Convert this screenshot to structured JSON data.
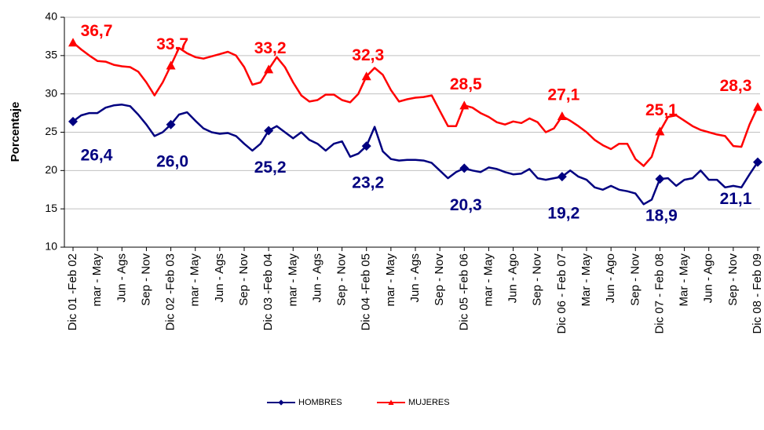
{
  "chart_data": {
    "type": "line",
    "y_label": "Porcentaje",
    "categories": [
      "Dic 01 -Feb 02",
      null,
      null,
      "mar - May",
      null,
      null,
      "Jun - Ags",
      null,
      null,
      "Sep - Nov",
      null,
      null,
      "Dic 02 -Feb 03",
      null,
      null,
      "mar - May",
      null,
      null,
      "Jun - Ags",
      null,
      null,
      "Sep - Nov",
      null,
      null,
      "Dic 03 -Feb 04",
      null,
      null,
      "mar - May",
      null,
      null,
      "Jun - Ags",
      null,
      null,
      "Sep - Nov",
      null,
      null,
      "Dic 04 -Feb 05",
      null,
      null,
      "mar - May",
      null,
      null,
      "Jun - Ags",
      null,
      null,
      "Sep - Nov",
      null,
      null,
      "Dic 05 -Feb 06",
      null,
      null,
      "mar - May",
      null,
      null,
      "Jun - Ago",
      null,
      null,
      "Sep - Nov",
      null,
      null,
      "Dic 06 - Feb 07",
      null,
      null,
      "Mar - May",
      null,
      null,
      "Jun - Ago",
      null,
      null,
      "Sep - Nov",
      null,
      null,
      "Dic 07 - Feb 08",
      null,
      null,
      "Mar - May",
      null,
      null,
      "Jun - Ago",
      null,
      null,
      "Sep - Nov",
      null,
      null,
      "Dic 08 - Feb 09"
    ],
    "series": [
      {
        "name": "HOMBRES",
        "color": "#000080",
        "marker": "diamond",
        "values": [
          26.4,
          27.2,
          27.5,
          27.5,
          28.2,
          28.5,
          28.6,
          28.4,
          27.3,
          26,
          24.5,
          25,
          26.0,
          27.3,
          27.6,
          26.5,
          25.5,
          25,
          24.8,
          24.9,
          24.5,
          23.5,
          22.6,
          23.5,
          25.2,
          25.8,
          25,
          24.2,
          25,
          24,
          23.5,
          22.6,
          23.5,
          23.8,
          21.8,
          22.2,
          23.2,
          25.7,
          22.5,
          21.5,
          21.3,
          21.4,
          21.4,
          21.3,
          21,
          20,
          19,
          19.8,
          20.3,
          20,
          19.8,
          20.4,
          20.2,
          19.8,
          19.5,
          19.6,
          20.2,
          19,
          18.8,
          19,
          19.2,
          20,
          19.2,
          18.8,
          17.8,
          17.5,
          18,
          17.5,
          17.3,
          17,
          15.6,
          16.2,
          18.9,
          19,
          18,
          18.8,
          19,
          20,
          18.8,
          18.8,
          17.8,
          18,
          17.8,
          19.5,
          21.1
        ],
        "value_labels": [
          "26,4",
          null,
          null,
          null,
          null,
          null,
          null,
          null,
          null,
          null,
          null,
          null,
          "26,0",
          null,
          null,
          null,
          null,
          null,
          null,
          null,
          null,
          null,
          null,
          null,
          "25,2",
          null,
          null,
          null,
          null,
          null,
          null,
          null,
          null,
          null,
          null,
          null,
          "23,2",
          null,
          null,
          null,
          null,
          null,
          null,
          null,
          null,
          null,
          null,
          null,
          "20,3",
          null,
          null,
          null,
          null,
          null,
          null,
          null,
          null,
          null,
          null,
          null,
          "19,2",
          null,
          null,
          null,
          null,
          null,
          null,
          null,
          null,
          null,
          null,
          null,
          "18,9",
          null,
          null,
          null,
          null,
          null,
          null,
          null,
          null,
          null,
          null,
          null,
          "21,1"
        ]
      },
      {
        "name": "MUJERES",
        "color": "#ff0000",
        "marker": "triangle",
        "values": [
          36.7,
          35.8,
          35,
          34.3,
          34.2,
          33.8,
          33.6,
          33.5,
          32.9,
          31.5,
          29.8,
          31.5,
          33.7,
          36,
          35.3,
          34.8,
          34.6,
          34.9,
          35.2,
          35.5,
          35,
          33.5,
          31.2,
          31.5,
          33.2,
          34.8,
          33.5,
          31.5,
          29.8,
          29,
          29.2,
          29.9,
          29.9,
          29.2,
          28.9,
          30,
          32.3,
          33.4,
          32.5,
          30.5,
          29,
          29.3,
          29.5,
          29.6,
          29.8,
          27.8,
          25.8,
          25.8,
          28.5,
          28.2,
          27.5,
          27,
          26.3,
          26,
          26.4,
          26.2,
          26.8,
          26.3,
          25,
          25.5,
          27.1,
          26.5,
          25.8,
          25,
          24,
          23.3,
          22.8,
          23.5,
          23.5,
          21.5,
          20.6,
          21.8,
          25.1,
          27,
          27.2,
          26.5,
          25.8,
          25.3,
          25,
          24.7,
          24.5,
          23.2,
          23.1,
          26,
          28.3
        ],
        "value_labels": [
          "36,7",
          null,
          null,
          null,
          null,
          null,
          null,
          null,
          null,
          null,
          null,
          null,
          "33,7",
          null,
          null,
          null,
          null,
          null,
          null,
          null,
          null,
          null,
          null,
          null,
          "33,2",
          null,
          null,
          null,
          null,
          null,
          null,
          null,
          null,
          null,
          null,
          null,
          "32,3",
          null,
          null,
          null,
          null,
          null,
          null,
          null,
          null,
          null,
          null,
          null,
          "28,5",
          null,
          null,
          null,
          null,
          null,
          null,
          null,
          null,
          null,
          null,
          null,
          "27,1",
          null,
          null,
          null,
          null,
          null,
          null,
          null,
          null,
          null,
          null,
          null,
          "25,1",
          null,
          null,
          null,
          null,
          null,
          null,
          null,
          null,
          null,
          null,
          null,
          "28,3"
        ]
      }
    ],
    "ylim": [
      10,
      40
    ],
    "yticks": [
      10,
      15,
      20,
      25,
      30,
      35,
      40
    ],
    "grid": true,
    "legend": "bottom"
  }
}
